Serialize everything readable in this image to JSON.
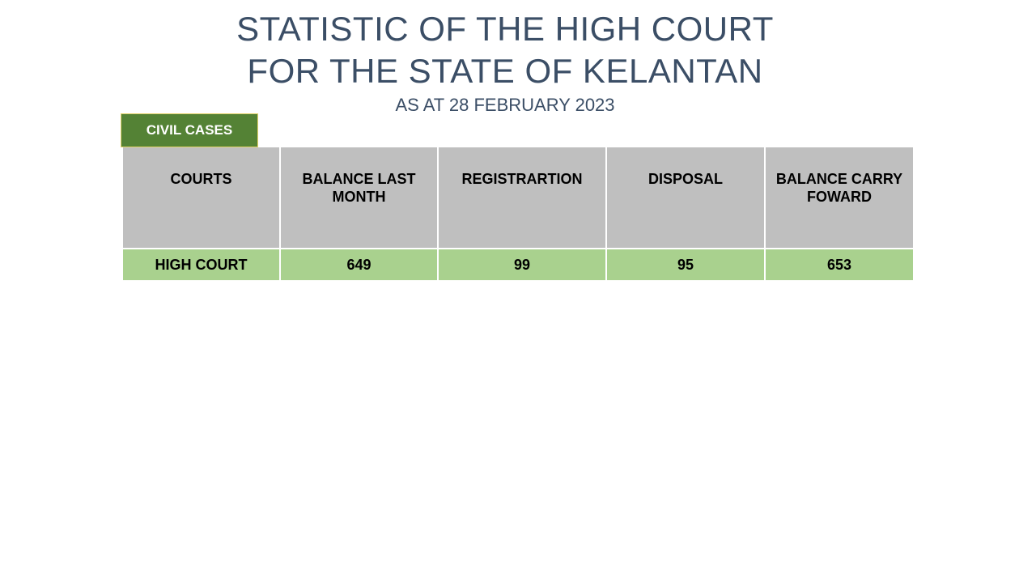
{
  "slide": {
    "title_line1": "STATISTIC OF THE HIGH COURT",
    "title_line2": "FOR THE STATE OF KELANTAN",
    "subtitle": "AS AT 28 FEBRUARY 2023",
    "section_label": "CIVIL CASES"
  },
  "table": {
    "headers": [
      "COURTS",
      "BALANCE LAST MONTH",
      "REGISTRARTION",
      "DISPOSAL",
      "BALANCE CARRY FOWARD"
    ],
    "rows": [
      [
        "HIGH COURT",
        "649",
        "99",
        "95",
        "653"
      ]
    ]
  },
  "colors": {
    "title": "#3b4e66",
    "section_tag_bg": "#548235",
    "section_tag_border": "#e3d36b",
    "header_bg": "#bfbfbf",
    "row_bg": "#a9d18e"
  }
}
